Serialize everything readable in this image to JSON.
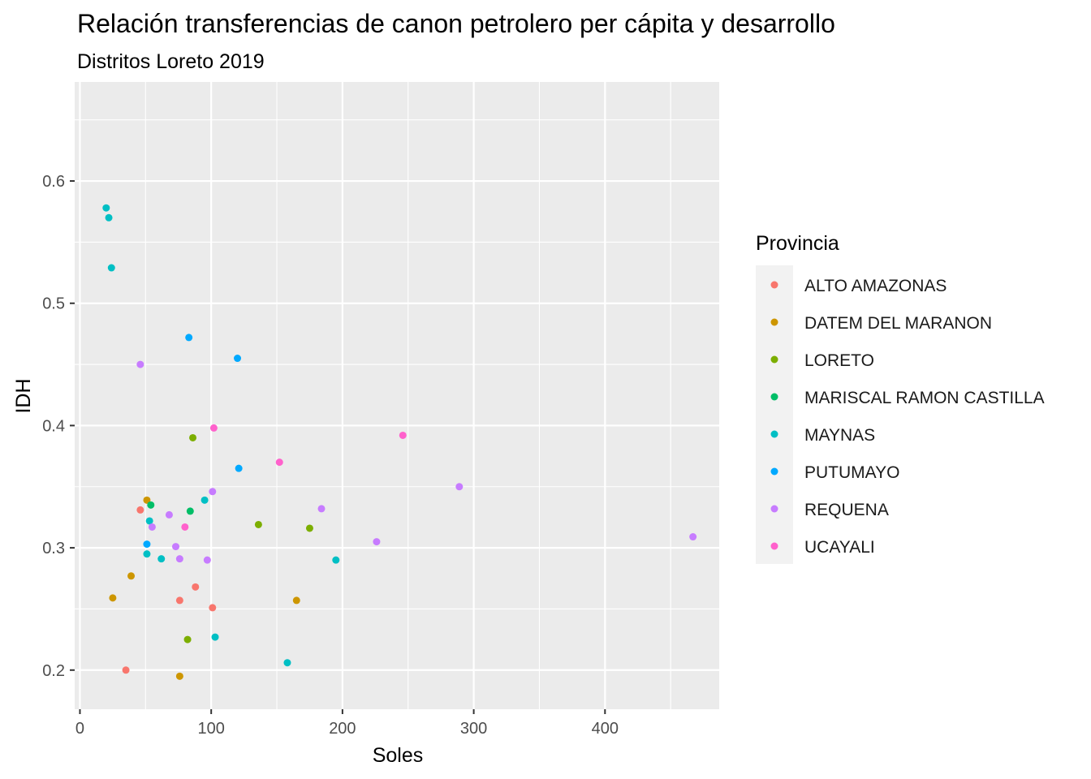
{
  "chart_data": {
    "type": "scatter",
    "title": "Relación transferencias de canon petrolero per cápita y desarrollo",
    "subtitle": "Distritos Loreto 2019",
    "xlabel": "Soles",
    "ylabel": "IDH",
    "xlim": [
      -4,
      487
    ],
    "ylim": [
      0.168,
      0.681
    ],
    "x_ticks": [
      0,
      100,
      200,
      300,
      400
    ],
    "y_ticks": [
      0.2,
      0.3,
      0.4,
      0.5,
      0.6
    ],
    "grid": true,
    "legend": {
      "title": "Provincia",
      "position": "right"
    },
    "series": [
      {
        "name": "ALTO AMAZONAS",
        "color": "#F8766D",
        "points": [
          [
            46,
            0.331
          ],
          [
            35,
            0.2
          ],
          [
            76,
            0.257
          ],
          [
            88,
            0.268
          ],
          [
            101,
            0.251
          ]
        ]
      },
      {
        "name": "DATEM DEL MARANON",
        "color": "#CD9600",
        "points": [
          [
            51,
            0.339
          ],
          [
            39,
            0.277
          ],
          [
            25,
            0.259
          ],
          [
            76,
            0.195
          ],
          [
            165,
            0.257
          ]
        ]
      },
      {
        "name": "LORETO",
        "color": "#7CAE00",
        "points": [
          [
            86,
            0.39
          ],
          [
            136,
            0.319
          ],
          [
            175,
            0.316
          ],
          [
            82,
            0.225
          ]
        ]
      },
      {
        "name": "MARISCAL RAMON CASTILLA",
        "color": "#00BE67",
        "points": [
          [
            54,
            0.335
          ],
          [
            84,
            0.33
          ]
        ]
      },
      {
        "name": "MAYNAS",
        "color": "#00BFC4",
        "points": [
          [
            20,
            0.578
          ],
          [
            22,
            0.57
          ],
          [
            24,
            0.529
          ],
          [
            53,
            0.322
          ],
          [
            51,
            0.295
          ],
          [
            62,
            0.291
          ],
          [
            95,
            0.339
          ],
          [
            103,
            0.227
          ],
          [
            158,
            0.206
          ],
          [
            195,
            0.29
          ]
        ]
      },
      {
        "name": "PUTUMAYO",
        "color": "#00A9FF",
        "points": [
          [
            83,
            0.472
          ],
          [
            120,
            0.455
          ],
          [
            121,
            0.365
          ],
          [
            51,
            0.303
          ]
        ]
      },
      {
        "name": "REQUENA",
        "color": "#C77CFF",
        "points": [
          [
            46,
            0.45
          ],
          [
            55,
            0.317
          ],
          [
            68,
            0.327
          ],
          [
            73,
            0.301
          ],
          [
            76,
            0.291
          ],
          [
            97,
            0.29
          ],
          [
            101,
            0.346
          ],
          [
            184,
            0.332
          ],
          [
            226,
            0.305
          ],
          [
            289,
            0.35
          ],
          [
            467,
            0.309
          ]
        ]
      },
      {
        "name": "UCAYALI",
        "color": "#FF61CC",
        "points": [
          [
            80,
            0.317
          ],
          [
            102,
            0.398
          ],
          [
            152,
            0.37
          ],
          [
            246,
            0.392
          ]
        ]
      }
    ]
  }
}
